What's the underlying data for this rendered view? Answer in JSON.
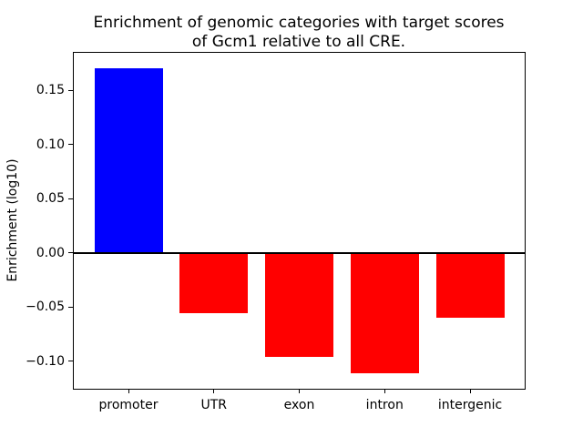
{
  "figure": {
    "background": "#ffffff"
  },
  "chart_data": {
    "type": "bar",
    "title": "Enrichment of genomic categories with target scores\nof Gcm1 relative to all CRE.",
    "ylabel": "Enrichment (log10)",
    "xlabel": "",
    "categories": [
      "promoter",
      "UTR",
      "exon",
      "intron",
      "intergenic"
    ],
    "values": [
      0.17,
      -0.056,
      -0.096,
      -0.111,
      -0.06
    ],
    "bar_colors": [
      "#0000ff",
      "#ff0000",
      "#ff0000",
      "#ff0000",
      "#ff0000"
    ],
    "bar_width": 0.8,
    "ylim": [
      -0.1255,
      0.1845
    ],
    "xlim": [
      -0.64,
      4.64
    ],
    "yticks": [
      {
        "value": 0.15,
        "label": "0.15"
      },
      {
        "value": 0.1,
        "label": "0.10"
      },
      {
        "value": 0.05,
        "label": "0.05"
      },
      {
        "value": 0.0,
        "label": "0.00"
      },
      {
        "value": -0.05,
        "label": "−0.05"
      },
      {
        "value": -0.1,
        "label": "−0.10"
      }
    ],
    "zero_line": {
      "y": 0.0,
      "color": "#000000",
      "linewidth": 2
    },
    "grid": false,
    "legend": null,
    "axes_color": "#000000",
    "text_color": "#000000"
  }
}
